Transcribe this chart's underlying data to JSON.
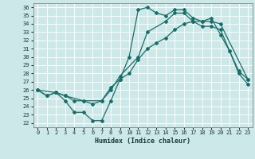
{
  "xlabel": "Humidex (Indice chaleur)",
  "bg_color": "#cce8e8",
  "grid_color": "#ffffff",
  "line_color": "#1a6e6a",
  "xlim": [
    -0.5,
    23.5
  ],
  "ylim": [
    21.5,
    36.5
  ],
  "xticks": [
    0,
    1,
    2,
    3,
    4,
    5,
    6,
    7,
    8,
    9,
    10,
    11,
    12,
    13,
    14,
    15,
    16,
    17,
    18,
    19,
    20,
    21,
    22,
    23
  ],
  "yticks": [
    22,
    23,
    24,
    25,
    26,
    27,
    28,
    29,
    30,
    31,
    32,
    33,
    34,
    35,
    36
  ],
  "line1_x": [
    0,
    1,
    2,
    3,
    4,
    5,
    6,
    7,
    8,
    9,
    10,
    11,
    12,
    13,
    14,
    15,
    16,
    17,
    18,
    19,
    20,
    21,
    22,
    23
  ],
  "line1_y": [
    26.0,
    25.3,
    25.7,
    25.3,
    24.7,
    24.7,
    24.3,
    24.7,
    26.3,
    27.3,
    28.0,
    29.7,
    31.0,
    31.7,
    32.3,
    33.3,
    34.0,
    34.3,
    33.7,
    33.7,
    33.3,
    30.7,
    28.3,
    27.3
  ],
  "line2_x": [
    0,
    1,
    2,
    3,
    4,
    5,
    6,
    7,
    8,
    9,
    10,
    11,
    12,
    13,
    14,
    15,
    16,
    17,
    18,
    19,
    20,
    21,
    22,
    23
  ],
  "line2_y": [
    26.0,
    25.3,
    25.7,
    24.7,
    23.3,
    23.3,
    22.3,
    22.3,
    24.7,
    27.3,
    30.0,
    35.7,
    36.0,
    35.3,
    35.0,
    35.7,
    35.7,
    34.7,
    34.3,
    34.7,
    32.7,
    30.7,
    28.0,
    26.7
  ],
  "line3_x": [
    0,
    2,
    3,
    5,
    7,
    8,
    9,
    11,
    12,
    14,
    15,
    16,
    17,
    18,
    19,
    20,
    23
  ],
  "line3_y": [
    26.0,
    25.7,
    25.3,
    24.7,
    24.7,
    26.0,
    27.7,
    30.0,
    33.0,
    34.3,
    35.3,
    35.3,
    34.3,
    34.3,
    34.3,
    34.0,
    27.3
  ]
}
